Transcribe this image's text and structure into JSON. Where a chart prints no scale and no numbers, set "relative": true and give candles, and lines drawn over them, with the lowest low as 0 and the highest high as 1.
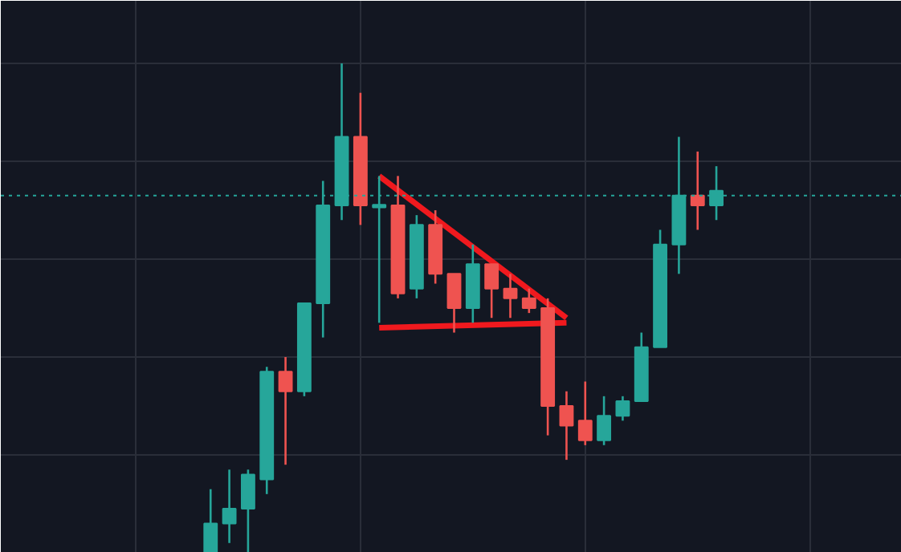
{
  "chart_data": {
    "type": "candlestick",
    "relative": true,
    "categories": [
      null,
      null,
      null,
      null,
      null,
      null,
      null,
      null,
      null,
      null,
      null,
      null,
      null,
      null,
      null,
      null,
      null,
      null,
      null,
      null,
      null,
      null,
      null,
      null,
      null,
      null,
      null,
      null
    ],
    "ohlc": [
      [
        0,
        0.13,
        0,
        0.06
      ],
      [
        0.06,
        0.17,
        0.02,
        0.09
      ],
      [
        0.09,
        0.17,
        0,
        0.16
      ],
      [
        0.15,
        0.38,
        0.12,
        0.37
      ],
      [
        0.37,
        0.4,
        0.18,
        0.33
      ],
      [
        0.33,
        0.51,
        0.32,
        0.51
      ],
      [
        0.51,
        0.76,
        0.44,
        0.71
      ],
      [
        0.71,
        1,
        0.68,
        0.85
      ],
      [
        0.85,
        0.94,
        0.67,
        0.71
      ],
      [
        0.708,
        0.77,
        0.47,
        0.711
      ],
      [
        0.71,
        0.77,
        0.52,
        0.53
      ],
      [
        0.54,
        0.69,
        0.52,
        0.67
      ],
      [
        0.67,
        0.7,
        0.55,
        0.57
      ],
      [
        0.57,
        0.57,
        0.45,
        0.5
      ],
      [
        0.5,
        0.63,
        0.47,
        0.59
      ],
      [
        0.59,
        0.59,
        0.48,
        0.54
      ],
      [
        0.54,
        0.57,
        0.48,
        0.52
      ],
      [
        0.52,
        0.54,
        0.49,
        0.5
      ],
      [
        0.5,
        0.52,
        0.24,
        0.3
      ],
      [
        0.3,
        0.33,
        0.19,
        0.26
      ],
      [
        0.27,
        0.35,
        0.22,
        0.23
      ],
      [
        0.23,
        0.32,
        0.22,
        0.28
      ],
      [
        0.28,
        0.32,
        0.27,
        0.31
      ],
      [
        0.31,
        0.45,
        0.31,
        0.42
      ],
      [
        0.42,
        0.66,
        0.42,
        0.63
      ],
      [
        0.63,
        0.85,
        0.57,
        0.73
      ],
      [
        0.73,
        0.82,
        0.66,
        0.71
      ],
      [
        0.71,
        0.79,
        0.68,
        0.74
      ]
    ],
    "colors": [
      "#26a69a",
      "#26a69a",
      "#26a69a",
      "#26a69a",
      "#ef5350",
      "#26a69a",
      "#26a69a",
      "#26a69a",
      "#ef5350",
      "#26a69a",
      "#ef5350",
      "#26a69a",
      "#ef5350",
      "#ef5350",
      "#26a69a",
      "#ef5350",
      "#ef5350",
      "#ef5350",
      "#ef5350",
      "#ef5350",
      "#ef5350",
      "#26a69a",
      "#26a69a",
      "#26a69a",
      "#26a69a",
      "#26a69a",
      "#ef5350",
      "#26a69a"
    ],
    "series": [
      {
        "type": "line",
        "color": "#f0191e",
        "values": [
          null,
          null,
          null,
          null,
          null,
          null,
          null,
          null,
          null,
          0.77,
          null,
          null,
          null,
          null,
          null,
          null,
          null,
          null,
          null,
          0.48,
          null,
          null,
          null,
          null,
          null,
          null,
          null,
          null
        ]
      },
      {
        "type": "line",
        "color": "#f0191e",
        "values": [
          null,
          null,
          null,
          null,
          null,
          null,
          null,
          null,
          null,
          0.46,
          null,
          null,
          null,
          null,
          null,
          null,
          null,
          null,
          null,
          0.47,
          null,
          null,
          null,
          null,
          null,
          null,
          null,
          null
        ]
      }
    ],
    "ref_lines": [
      {
        "axis": "y",
        "value": 0.73,
        "color": "#26a69a",
        "line_style": "dotted"
      }
    ],
    "tick_labels": false,
    "grid": true
  }
}
